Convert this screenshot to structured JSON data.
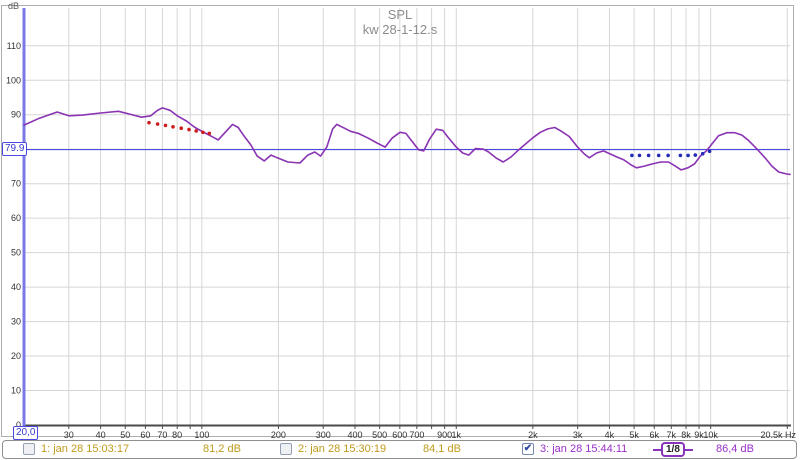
{
  "chart": {
    "title": "SPL",
    "subtitle": "kw 28-1-12.s",
    "y_axis_unit": "dB",
    "x_end_label": "20,5k Hz"
  },
  "cursor": {
    "level_label": "79.9",
    "freq_label": "20,0",
    "level_db": 79.9
  },
  "legend": {
    "items": [
      {
        "label": "1: jan 28 15:03:17",
        "value": "81,2 dB",
        "checked": false,
        "color": "#c09a1c"
      },
      {
        "label": "2: jan 28 15:30:19",
        "value": "84,1 dB",
        "checked": false,
        "color": "#c09a1c"
      },
      {
        "label": "3: jan 28 15:44:11",
        "value": "86,4 dB",
        "checked": true,
        "color": "#9a30c9"
      }
    ],
    "smoothing": "1/8",
    "check_glyph": "✔"
  },
  "chart_data": {
    "type": "line",
    "x_scale": "log",
    "x_range_hz": [
      20,
      20500
    ],
    "y_range_db": [
      0,
      110
    ],
    "y_tick_step": 10,
    "grid": true,
    "x_ticks": [
      [
        30,
        "30"
      ],
      [
        40,
        "40"
      ],
      [
        50,
        "50"
      ],
      [
        60,
        "60"
      ],
      [
        70,
        "70"
      ],
      [
        80,
        "80"
      ],
      [
        90,
        ""
      ],
      [
        100,
        "100"
      ],
      [
        200,
        "200"
      ],
      [
        300,
        "300"
      ],
      [
        400,
        "400"
      ],
      [
        500,
        "500"
      ],
      [
        600,
        "600"
      ],
      [
        700,
        "700"
      ],
      [
        800,
        ""
      ],
      [
        900,
        "900"
      ],
      [
        1000,
        "1k"
      ],
      [
        2000,
        "2k"
      ],
      [
        3000,
        "3k"
      ],
      [
        4000,
        "4k"
      ],
      [
        5000,
        "5k"
      ],
      [
        6000,
        "6k"
      ],
      [
        7000,
        "7k"
      ],
      [
        8000,
        "8k"
      ],
      [
        9000,
        "9k"
      ],
      [
        10000,
        "10k"
      ],
      [
        20000,
        ""
      ]
    ],
    "cursor_line_db": 79.9,
    "colors": {
      "trace": "#8a33b3",
      "red_overlay": "#cc1d1d",
      "blue_overlay": "#2529b8",
      "cursor_line": "#4a4ae0",
      "grid": "#d6d6d6",
      "axis": "#4a4a4a",
      "y_axis_line": "#7a7ae6",
      "panel_border": "#aeaeae",
      "tick_text": "#333333"
    },
    "series": [
      {
        "name": "spl-trace",
        "style": "line",
        "points": [
          [
            20,
            87.0
          ],
          [
            23,
            89.0
          ],
          [
            27,
            90.8
          ],
          [
            30,
            89.7
          ],
          [
            34,
            89.9
          ],
          [
            40,
            90.5
          ],
          [
            47,
            91.0
          ],
          [
            52,
            90.2
          ],
          [
            58,
            89.3
          ],
          [
            63,
            89.7
          ],
          [
            67,
            91.3
          ],
          [
            70,
            92.0
          ],
          [
            75,
            91.3
          ],
          [
            80,
            89.7
          ],
          [
            87,
            88.2
          ],
          [
            94,
            86.3
          ],
          [
            103,
            84.7
          ],
          [
            110,
            83.6
          ],
          [
            116,
            82.7
          ],
          [
            126,
            85.6
          ],
          [
            132,
            87.2
          ],
          [
            139,
            86.3
          ],
          [
            146,
            84.0
          ],
          [
            156,
            81.2
          ],
          [
            165,
            78.0
          ],
          [
            176,
            76.6
          ],
          [
            187,
            78.3
          ],
          [
            198,
            77.5
          ],
          [
            218,
            76.3
          ],
          [
            243,
            76.0
          ],
          [
            261,
            78.3
          ],
          [
            278,
            79.2
          ],
          [
            293,
            78.0
          ],
          [
            310,
            80.6
          ],
          [
            327,
            85.9
          ],
          [
            339,
            87.2
          ],
          [
            361,
            86.2
          ],
          [
            384,
            85.2
          ],
          [
            412,
            84.6
          ],
          [
            451,
            83.2
          ],
          [
            488,
            81.8
          ],
          [
            525,
            80.6
          ],
          [
            559,
            83.2
          ],
          [
            601,
            84.9
          ],
          [
            634,
            84.6
          ],
          [
            668,
            82.4
          ],
          [
            712,
            79.8
          ],
          [
            745,
            79.5
          ],
          [
            786,
            83.0
          ],
          [
            835,
            85.8
          ],
          [
            884,
            85.5
          ],
          [
            930,
            83.4
          ],
          [
            1000,
            80.6
          ],
          [
            1060,
            78.9
          ],
          [
            1120,
            78.3
          ],
          [
            1190,
            80.2
          ],
          [
            1280,
            80.0
          ],
          [
            1340,
            79.2
          ],
          [
            1430,
            77.5
          ],
          [
            1530,
            76.3
          ],
          [
            1640,
            77.7
          ],
          [
            1740,
            79.5
          ],
          [
            1850,
            81.2
          ],
          [
            2000,
            83.3
          ],
          [
            2140,
            84.9
          ],
          [
            2290,
            85.9
          ],
          [
            2440,
            86.3
          ],
          [
            2590,
            85.2
          ],
          [
            2780,
            83.7
          ],
          [
            3000,
            80.6
          ],
          [
            3190,
            78.6
          ],
          [
            3330,
            77.5
          ],
          [
            3560,
            78.9
          ],
          [
            3790,
            79.5
          ],
          [
            4030,
            78.6
          ],
          [
            4290,
            77.7
          ],
          [
            4560,
            76.9
          ],
          [
            4880,
            75.4
          ],
          [
            5110,
            74.6
          ],
          [
            5490,
            75.1
          ],
          [
            5880,
            75.7
          ],
          [
            6360,
            76.3
          ],
          [
            6830,
            76.3
          ],
          [
            7260,
            75.1
          ],
          [
            7660,
            74.0
          ],
          [
            8140,
            74.6
          ],
          [
            8630,
            75.7
          ],
          [
            9100,
            78.0
          ],
          [
            9620,
            79.5
          ],
          [
            10080,
            81.4
          ],
          [
            10730,
            83.9
          ],
          [
            11570,
            84.8
          ],
          [
            12450,
            84.8
          ],
          [
            13280,
            84.1
          ],
          [
            14140,
            82.4
          ],
          [
            15200,
            80.1
          ],
          [
            16350,
            77.5
          ],
          [
            17400,
            75.1
          ],
          [
            18500,
            73.4
          ],
          [
            19900,
            72.8
          ],
          [
            20500,
            72.7
          ]
        ]
      },
      {
        "name": "red-dotted-overlay",
        "style": "dots",
        "points": [
          [
            62,
            87.7
          ],
          [
            67,
            87.3
          ],
          [
            72,
            86.9
          ],
          [
            77,
            86.5
          ],
          [
            83,
            86.1
          ],
          [
            89,
            85.7
          ],
          [
            95,
            85.3
          ],
          [
            101,
            84.9
          ],
          [
            107,
            84.6
          ]
        ]
      },
      {
        "name": "blue-dotted-overlay",
        "style": "dots",
        "points": [
          [
            4900,
            78.2
          ],
          [
            5250,
            78.2
          ],
          [
            5700,
            78.2
          ],
          [
            6250,
            78.2
          ],
          [
            6800,
            78.2
          ],
          [
            7600,
            78.2
          ],
          [
            8150,
            78.2
          ],
          [
            8700,
            78.3
          ],
          [
            9300,
            78.7
          ],
          [
            9900,
            79.4
          ]
        ]
      }
    ]
  }
}
